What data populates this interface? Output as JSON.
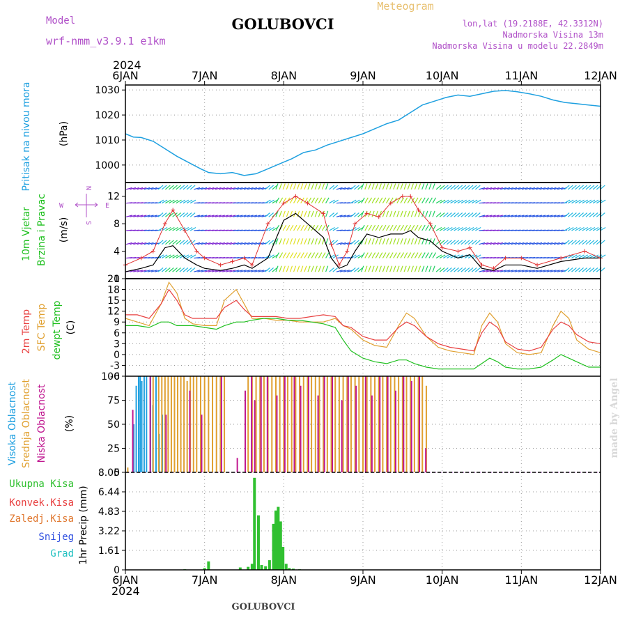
{
  "header": {
    "model_label": "Model",
    "model_name": "wrf-nmm_v3.9.1 e1km",
    "title": "GOLUBOVCI",
    "meteogram_label": "Meteogram",
    "lonlat": "lon,lat (19.2188E, 42.3312N)",
    "elevation": "Nadmorska Visina 13m",
    "model_elevation": "Nadmorska Visina u modelu 22.2849m",
    "footer_title": "GOLUBOVCI",
    "watermark": "made by Angel"
  },
  "colors": {
    "pressure": "#1ea0e0",
    "temp2m": "#e84040",
    "sfc_temp": "#e0a030",
    "dewpt": "#20c020",
    "high_cloud": "#20a0e0",
    "mid_cloud": "#e0a030",
    "low_cloud": "#c01890",
    "total_precip": "#30c030",
    "wind_speed": "#000000",
    "gust": "#e03030"
  },
  "chart_data": [
    {
      "type": "line",
      "panel": "pressure",
      "year_label": "2024",
      "x_tick_labels": [
        "6JAN",
        "7JAN",
        "8JAN",
        "9JAN",
        "10JAN",
        "11JAN",
        "12JAN"
      ],
      "ylabel": [
        "Pritisak na nivou mora",
        "(hPa)"
      ],
      "y_tick_labels": [
        "1000",
        "1010",
        "1020",
        "1030"
      ],
      "ylim": [
        993,
        1032
      ],
      "grid": true,
      "series": [
        {
          "color": "pressure",
          "x": [
            0,
            0.1,
            0.2,
            0.35,
            0.5,
            0.65,
            0.8,
            0.95,
            1.05,
            1.2,
            1.35,
            1.5,
            1.65,
            1.8,
            1.95,
            2.1,
            2.25,
            2.4,
            2.55,
            2.7,
            2.85,
            3.0,
            3.15,
            3.3,
            3.45,
            3.6,
            3.75,
            3.9,
            4.05,
            4.2,
            4.35,
            4.5,
            4.65,
            4.8,
            4.95,
            5.1,
            5.25,
            5.4,
            5.55,
            5.7,
            5.85,
            6.0
          ],
          "values": [
            1012.5,
            1011.2,
            1011,
            1009.5,
            1006.5,
            1003.5,
            1001,
            998.5,
            997,
            996.5,
            997,
            995.8,
            996.5,
            998.5,
            1000.5,
            1002.5,
            1005,
            1006,
            1008,
            1009.5,
            1011,
            1012.5,
            1014.5,
            1016.5,
            1018,
            1021,
            1024,
            1025.5,
            1027,
            1028,
            1027.5,
            1028.5,
            1029.5,
            1029.8,
            1029.3,
            1028.5,
            1027.5,
            1026,
            1025,
            1024.5,
            1024,
            1023.5
          ]
        }
      ]
    },
    {
      "type": "line",
      "panel": "wind",
      "ylabel": [
        "10m Vjetar",
        "Brzina i Pravac",
        "(m/s)"
      ],
      "y_tick_labels": [
        "0",
        "4",
        "8",
        "12"
      ],
      "ylim": [
        0,
        14
      ],
      "compass": {
        "n": "N",
        "s": "S",
        "e": "E",
        "w": "W"
      },
      "grid": true,
      "series": [
        {
          "color": "wind_speed",
          "x": [
            0,
            0.2,
            0.35,
            0.5,
            0.6,
            0.75,
            0.9,
            1.0,
            1.2,
            1.35,
            1.5,
            1.6,
            1.8,
            2.0,
            2.15,
            2.3,
            2.5,
            2.6,
            2.7,
            2.8,
            2.9,
            3.05,
            3.2,
            3.35,
            3.5,
            3.6,
            3.7,
            3.85,
            4.0,
            4.2,
            4.35,
            4.5,
            4.65,
            4.8,
            5.0,
            5.2,
            5.5,
            5.8,
            6.0
          ],
          "values": [
            1,
            1.5,
            2,
            4.5,
            4.8,
            3,
            2,
            1.5,
            1.2,
            1.5,
            2,
            1.5,
            3,
            8.5,
            9.5,
            8,
            6,
            3,
            1.5,
            2,
            4,
            6.5,
            6,
            6.5,
            6.5,
            7,
            6,
            5.5,
            4,
            3,
            3.5,
            1.5,
            1.2,
            2,
            2,
            1.5,
            2.5,
            3,
            3
          ]
        },
        {
          "color": "gust",
          "x": [
            0,
            0.2,
            0.35,
            0.5,
            0.6,
            0.75,
            0.9,
            1.0,
            1.2,
            1.35,
            1.5,
            1.6,
            1.8,
            2.0,
            2.15,
            2.3,
            2.5,
            2.6,
            2.7,
            2.8,
            2.9,
            3.05,
            3.2,
            3.35,
            3.5,
            3.6,
            3.7,
            3.85,
            4.0,
            4.2,
            4.35,
            4.5,
            4.65,
            4.8,
            5.0,
            5.2,
            5.5,
            5.8,
            6.0
          ],
          "values": [
            2,
            3,
            4,
            8,
            10,
            7,
            4,
            3,
            2,
            2.5,
            3,
            2,
            8,
            11,
            12,
            11,
            9.5,
            5,
            2,
            4,
            8,
            9.5,
            9,
            11,
            12,
            12,
            10,
            8,
            4.5,
            4,
            4.5,
            2,
            1.5,
            3,
            3,
            2,
            3,
            4,
            3
          ]
        }
      ]
    },
    {
      "type": "line",
      "panel": "temperature",
      "ylabel": [
        "2m Temp",
        "SFC Temp",
        "dewpt Temp",
        "(C)"
      ],
      "y_tick_labels": [
        "-6",
        "-3",
        "0",
        "3",
        "6",
        "9",
        "12",
        "15",
        "18",
        "21"
      ],
      "ylim": [
        -6,
        21
      ],
      "grid": true,
      "series": [
        {
          "color": "sfc_temp",
          "x": [
            0,
            0.15,
            0.3,
            0.45,
            0.55,
            0.65,
            0.75,
            0.85,
            1.0,
            1.15,
            1.25,
            1.4,
            1.5,
            1.6,
            1.75,
            1.9,
            2.05,
            2.2,
            2.35,
            2.5,
            2.65,
            2.75,
            2.85,
            3.0,
            3.15,
            3.3,
            3.45,
            3.55,
            3.65,
            3.8,
            3.95,
            4.1,
            4.25,
            4.4,
            4.5,
            4.6,
            4.7,
            4.8,
            4.95,
            5.1,
            5.25,
            5.4,
            5.5,
            5.6,
            5.7,
            5.85,
            6.0
          ],
          "values": [
            10,
            9,
            8,
            14,
            20,
            17,
            10,
            8.5,
            8,
            8,
            15,
            18,
            14,
            10,
            10,
            9.5,
            9.5,
            9,
            9,
            9,
            10,
            8,
            7,
            4,
            2.5,
            2,
            8,
            11.5,
            10,
            5,
            2,
            1,
            0.5,
            0,
            8,
            11.5,
            9,
            3,
            0.5,
            0,
            0.5,
            8,
            12,
            10,
            4,
            1.5,
            0.5
          ]
        },
        {
          "color": "temp2m",
          "x": [
            0,
            0.15,
            0.3,
            0.45,
            0.55,
            0.65,
            0.75,
            0.85,
            1.0,
            1.15,
            1.25,
            1.4,
            1.5,
            1.6,
            1.75,
            1.9,
            2.05,
            2.2,
            2.35,
            2.5,
            2.65,
            2.75,
            2.85,
            3.0,
            3.15,
            3.3,
            3.45,
            3.55,
            3.65,
            3.8,
            3.95,
            4.1,
            4.25,
            4.4,
            4.5,
            4.6,
            4.7,
            4.8,
            4.95,
            5.1,
            5.25,
            5.4,
            5.5,
            5.6,
            5.7,
            5.85,
            6.0
          ],
          "values": [
            11,
            11,
            10,
            14,
            18,
            15,
            11,
            10,
            10,
            10,
            13,
            15,
            12.5,
            10.5,
            10.5,
            10.5,
            10,
            10,
            10.5,
            11,
            10.5,
            8,
            7.5,
            5,
            4,
            4,
            7.5,
            9,
            8,
            5,
            3,
            2,
            1.5,
            1,
            6,
            9,
            7.5,
            3.5,
            1.5,
            1,
            2,
            7,
            9,
            8,
            5.5,
            3.5,
            3
          ]
        },
        {
          "color": "dewpt",
          "x": [
            0,
            0.15,
            0.3,
            0.45,
            0.55,
            0.65,
            0.75,
            0.85,
            1.0,
            1.15,
            1.25,
            1.4,
            1.5,
            1.6,
            1.75,
            1.9,
            2.05,
            2.2,
            2.35,
            2.5,
            2.65,
            2.75,
            2.85,
            3.0,
            3.15,
            3.3,
            3.45,
            3.55,
            3.65,
            3.8,
            3.95,
            4.1,
            4.25,
            4.4,
            4.5,
            4.6,
            4.7,
            4.8,
            4.95,
            5.1,
            5.25,
            5.4,
            5.5,
            5.6,
            5.7,
            5.85,
            6.0
          ],
          "values": [
            8,
            8,
            7.5,
            9,
            9,
            8,
            8,
            8,
            7.5,
            7,
            8,
            9,
            9,
            9.5,
            10,
            10,
            9.5,
            9.5,
            9,
            8.5,
            7.5,
            4,
            1,
            -1,
            -2,
            -2.5,
            -1.5,
            -1.5,
            -2.5,
            -3.5,
            -4,
            -4,
            -4,
            -4,
            -2.5,
            -1,
            -2,
            -3.5,
            -4,
            -4,
            -3.5,
            -1.5,
            0,
            -1,
            -2,
            -3.5,
            -3.5
          ]
        }
      ]
    },
    {
      "type": "bar",
      "panel": "cloud",
      "ylabel": [
        "Visoka Oblacnost",
        "Srednja Oblacnost",
        "Niska Oblacnost",
        "(%)"
      ],
      "y_tick_labels": [
        "0",
        "25",
        "50",
        "75",
        "100"
      ],
      "ylim": [
        0,
        100
      ],
      "grid": true,
      "series": [
        {
          "color": "high_cloud",
          "x": [
            0.12,
            0.15,
            0.18,
            0.2,
            0.22,
            0.25,
            0.28,
            0.33,
            0.36,
            0.4,
            0.44,
            0.48
          ],
          "values": [
            50,
            90,
            100,
            100,
            95,
            100,
            100,
            100,
            70,
            100,
            40,
            60
          ]
        },
        {
          "color": "mid_cloud",
          "x": [
            0.03,
            0.35,
            0.42,
            0.46,
            0.5,
            0.54,
            0.58,
            0.62,
            0.66,
            0.7,
            0.74,
            0.78,
            0.82,
            0.86,
            0.9,
            0.95,
            1.0,
            1.05,
            1.1,
            1.15,
            1.2,
            1.25,
            1.55,
            1.6,
            1.65,
            1.7,
            1.75,
            1.8,
            1.85,
            1.9,
            1.95,
            2.0,
            2.05,
            2.1,
            2.15,
            2.2,
            2.25,
            2.3,
            2.35,
            2.4,
            2.45,
            2.5,
            2.55,
            2.6,
            2.65,
            2.7,
            2.75,
            2.8,
            2.85,
            2.9,
            2.95,
            3.0,
            3.05,
            3.1,
            3.15,
            3.2,
            3.25,
            3.3,
            3.35,
            3.4,
            3.45,
            3.5,
            3.55,
            3.6,
            3.65,
            3.7,
            3.75,
            3.8
          ],
          "values": [
            5,
            100,
            100,
            100,
            100,
            100,
            100,
            100,
            100,
            100,
            100,
            95,
            100,
            100,
            100,
            100,
            100,
            100,
            100,
            100,
            100,
            100,
            100,
            100,
            100,
            100,
            100,
            100,
            100,
            100,
            100,
            100,
            100,
            100,
            100,
            100,
            100,
            100,
            100,
            100,
            100,
            100,
            100,
            100,
            100,
            100,
            100,
            100,
            100,
            100,
            100,
            100,
            100,
            100,
            100,
            100,
            100,
            100,
            100,
            100,
            100,
            100,
            100,
            100,
            100,
            100,
            100,
            90
          ]
        },
        {
          "color": "low_cloud",
          "x": [
            0.08,
            0.3,
            0.5,
            0.8,
            0.95,
            1.2,
            1.4,
            1.5,
            1.58,
            1.62,
            1.7,
            1.78,
            1.9,
            2.0,
            2.12,
            2.2,
            2.3,
            2.42,
            2.5,
            2.6,
            2.72,
            2.8,
            2.9,
            3.02,
            3.1,
            3.2,
            3.3,
            3.4,
            3.5,
            3.6,
            3.7,
            3.78
          ],
          "values": [
            65,
            100,
            60,
            85,
            60,
            100,
            15,
            85,
            100,
            75,
            100,
            100,
            80,
            100,
            100,
            90,
            100,
            80,
            100,
            100,
            75,
            100,
            90,
            100,
            80,
            100,
            100,
            85,
            100,
            95,
            100,
            25
          ]
        }
      ]
    },
    {
      "type": "bar",
      "panel": "precipitation",
      "ylabel": "1hr Precip (mm)",
      "legend_labels": [
        "Ukupna Kisa",
        "Konvek.Kisa",
        "Zaledj.Kisa",
        "Snijeg",
        "Grad"
      ],
      "y_tick_labels": [
        "0",
        "1.61",
        "3.22",
        "4.83",
        "6.44",
        "8.05"
      ],
      "ylim": [
        0,
        8.05
      ],
      "x_tick_labels": [
        "6JAN",
        "7JAN",
        "8JAN",
        "9JAN",
        "10JAN",
        "11JAN",
        "12JAN"
      ],
      "year_label": "2024",
      "grid": true,
      "series": [
        {
          "color": "total_precip",
          "x": [
            0.75,
            1.0,
            1.05,
            1.45,
            1.55,
            1.6,
            1.63,
            1.68,
            1.72,
            1.77,
            1.82,
            1.87,
            1.9,
            1.93,
            1.96,
            1.99,
            2.03,
            2.07,
            2.12,
            2.2
          ],
          "values": [
            0.05,
            0.15,
            0.7,
            0.2,
            0.25,
            0.5,
            7.6,
            4.5,
            0.4,
            0.3,
            0.8,
            3.8,
            4.9,
            5.2,
            4.0,
            1.9,
            0.5,
            0.15,
            0.1,
            0.05
          ]
        }
      ]
    }
  ]
}
